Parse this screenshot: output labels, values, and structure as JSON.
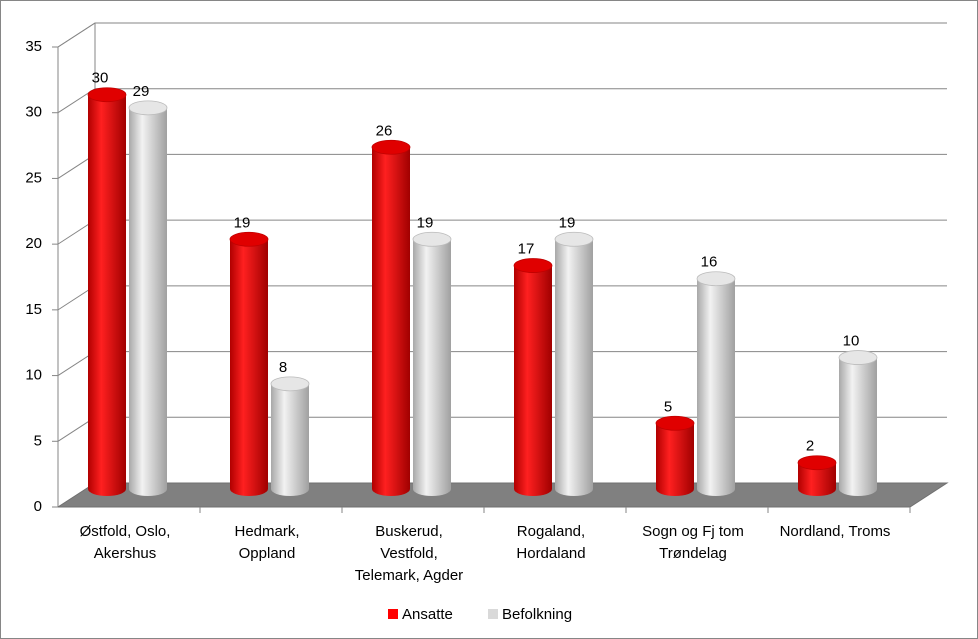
{
  "chart_data": {
    "type": "bar3d",
    "categories": [
      [
        "Østfold, Oslo,",
        "Akershus"
      ],
      [
        "Hedmark,",
        "Oppland"
      ],
      [
        "Buskerud,",
        "Vestfold,",
        "Telemark, Agder"
      ],
      [
        "Rogaland,",
        "Hordaland"
      ],
      [
        "Sogn og Fj tom",
        "Trøndelag"
      ],
      [
        "Nordland, Troms"
      ]
    ],
    "series": [
      {
        "name": "Ansatte",
        "color": "#ff0000",
        "values": [
          30,
          19,
          26,
          17,
          5,
          2
        ]
      },
      {
        "name": "Befolkning",
        "color": "#d9d9d9",
        "values": [
          29,
          8,
          19,
          19,
          16,
          10
        ]
      }
    ],
    "ylim": [
      0,
      35
    ],
    "yticks": [
      0,
      5,
      10,
      15,
      20,
      25,
      30,
      35
    ],
    "grid": true,
    "legend": "bottom"
  }
}
